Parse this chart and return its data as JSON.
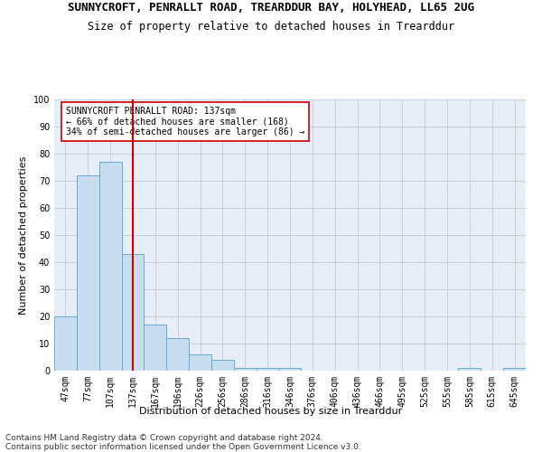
{
  "title": "SUNNYCROFT, PENRALLT ROAD, TREARDDUR BAY, HOLYHEAD, LL65 2UG",
  "subtitle": "Size of property relative to detached houses in Trearddur",
  "xlabel": "Distribution of detached houses by size in Trearddur",
  "ylabel": "Number of detached properties",
  "bar_labels": [
    "47sqm",
    "77sqm",
    "107sqm",
    "137sqm",
    "167sqm",
    "196sqm",
    "226sqm",
    "256sqm",
    "286sqm",
    "316sqm",
    "346sqm",
    "376sqm",
    "406sqm",
    "436sqm",
    "466sqm",
    "495sqm",
    "525sqm",
    "555sqm",
    "585sqm",
    "615sqm",
    "645sqm"
  ],
  "bar_values": [
    20,
    72,
    77,
    43,
    17,
    12,
    6,
    4,
    1,
    1,
    1,
    0,
    0,
    0,
    0,
    0,
    0,
    0,
    1,
    0,
    1
  ],
  "bar_color": "#c9ddf0",
  "bar_edge_color": "#6aaad4",
  "vline_x": 3,
  "vline_color": "#cc0000",
  "annotation_line1": "SUNNYCROFT PENRALLT ROAD: 137sqm",
  "annotation_line2": "← 66% of detached houses are smaller (168)",
  "annotation_line3": "34% of semi-detached houses are larger (86) →",
  "annotation_box_color": "#ffffff",
  "annotation_box_edge": "#cc0000",
  "ylim": [
    0,
    100
  ],
  "yticks": [
    0,
    10,
    20,
    30,
    40,
    50,
    60,
    70,
    80,
    90,
    100
  ],
  "footer": "Contains HM Land Registry data © Crown copyright and database right 2024.\nContains public sector information licensed under the Open Government Licence v3.0.",
  "bg_color": "#ffffff",
  "plot_bg_color": "#e8eef8",
  "grid_color": "#c8d0e0",
  "title_fontsize": 9,
  "subtitle_fontsize": 8.5,
  "axis_label_fontsize": 8,
  "tick_fontsize": 7,
  "annotation_fontsize": 7,
  "footer_fontsize": 6.5
}
